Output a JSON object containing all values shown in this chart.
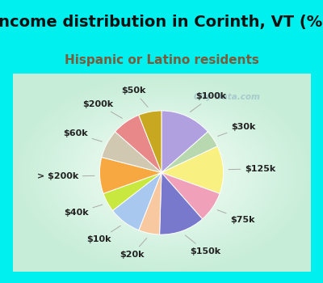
{
  "title": "Income distribution in Corinth, VT (%)",
  "subtitle": "Hispanic or Latino residents",
  "bg_cyan": "#00f0f0",
  "bg_chart_color": "#d8f0e8",
  "labels": [
    "$100k",
    "$30k",
    "$125k",
    "$75k",
    "$150k",
    "$20k",
    "$10k",
    "$40k",
    "> $200k",
    "$60k",
    "$200k",
    "$50k"
  ],
  "values": [
    13.5,
    4.5,
    12.5,
    8.0,
    12.0,
    5.5,
    8.5,
    5.0,
    9.5,
    7.5,
    7.5,
    6.0
  ],
  "colors": [
    "#b0a0e0",
    "#b8d8b0",
    "#f8f080",
    "#f0a0b8",
    "#7878cc",
    "#f8c8a0",
    "#a8c8f0",
    "#c8e840",
    "#f8a840",
    "#d0c8b0",
    "#e88888",
    "#c8a820"
  ],
  "watermark": "City-Data.com",
  "title_fontsize": 14,
  "subtitle_fontsize": 11,
  "label_fontsize": 8,
  "title_color": "#111111",
  "subtitle_color": "#7a5c3a"
}
